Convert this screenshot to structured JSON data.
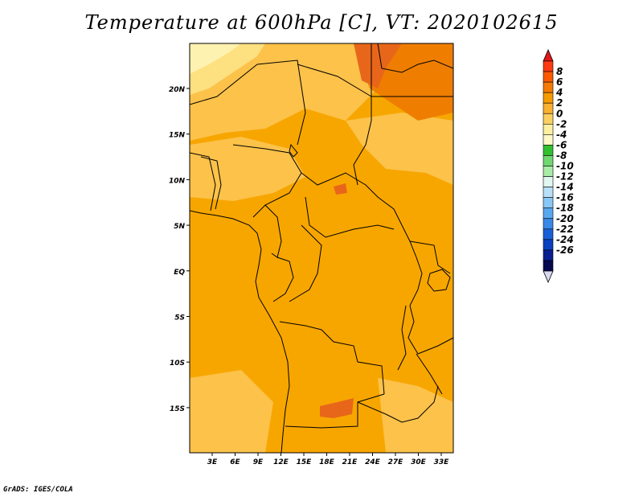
{
  "title": "Temperature at 600hPa [C], VT: 2020102615",
  "credit": "GrADS: IGES/COLA",
  "map": {
    "lat_labels": [
      "20N",
      "15N",
      "10N",
      "5N",
      "EQ",
      "5S",
      "10S",
      "15S"
    ],
    "lat_values": [
      20,
      15,
      10,
      5,
      0,
      -5,
      -10,
      -15
    ],
    "lon_labels": [
      "3E",
      "6E",
      "9E",
      "12E",
      "15E",
      "18E",
      "21E",
      "24E",
      "27E",
      "30E",
      "33E"
    ],
    "lon_values": [
      3,
      6,
      9,
      12,
      15,
      18,
      21,
      24,
      27,
      30,
      33
    ]
  },
  "colorbar": {
    "labels": [
      "8",
      "6",
      "4",
      "2",
      "0",
      "-2",
      "-4",
      "-6",
      "-8",
      "-10",
      "-12",
      "-14",
      "-16",
      "-18",
      "-20",
      "-22",
      "-24",
      "-26"
    ],
    "colors": [
      "#ff3a10",
      "#ff5a00",
      "#f57a00",
      "#f79a00",
      "#fab030",
      "#fcd060",
      "#fdf0a0",
      "#fff8c8",
      "#30c030",
      "#70d870",
      "#a8eca8",
      "#e0f8f0",
      "#b8e0f8",
      "#88c8f8",
      "#58a8f0",
      "#3888e8",
      "#1860d8",
      "#0840c0",
      "#082090",
      "#060850"
    ],
    "over_color": "#e01818",
    "under_color": "#d8d8f0"
  },
  "colors": {
    "base_field": "#f7a600",
    "warm_field": "#ef7e00",
    "hot_patch": "#e8661a",
    "cool_field": "#fcc24a",
    "cooler_field": "#fde080",
    "coolest_field": "#fef2b0"
  }
}
